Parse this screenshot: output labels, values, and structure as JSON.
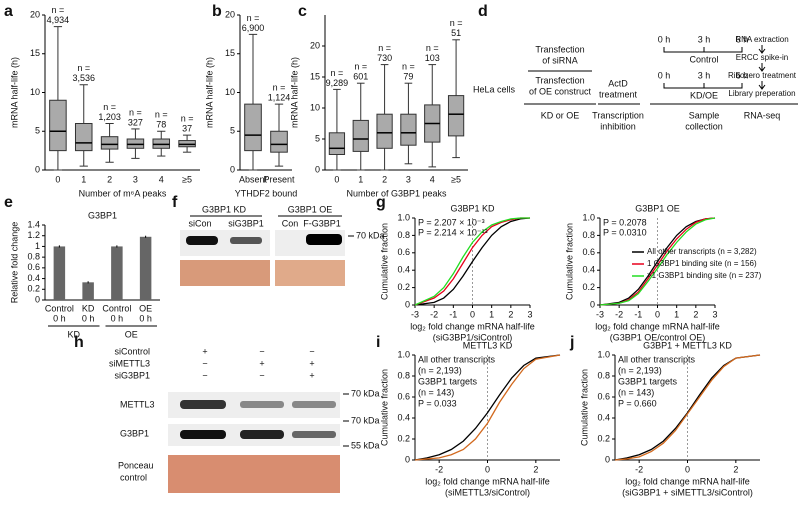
{
  "chart_data": [
    {
      "type": "box",
      "ylabel": "mRNA half-life (h)",
      "xlabel": "Number of m⁶A peaks",
      "color": "#aaaaaa",
      "ylim": [
        0,
        20
      ],
      "yticks": [
        0,
        5,
        10,
        15,
        20
      ],
      "categories": [
        "0",
        "1",
        "2",
        "3",
        "4",
        "≥5"
      ],
      "boxes": [
        [
          0,
          2.5,
          5,
          9,
          18.5
        ],
        [
          0.5,
          2.5,
          3.5,
          6,
          11
        ],
        [
          1,
          2.7,
          3.3,
          4.3,
          6
        ],
        [
          1.5,
          2.8,
          3.3,
          4,
          5.3
        ],
        [
          1.8,
          2.8,
          3.3,
          4,
          5
        ],
        [
          2.3,
          3,
          3.3,
          3.8,
          4.5
        ]
      ],
      "annotations": [
        [
          "n =",
          "4,934"
        ],
        [
          "n =",
          "3,536"
        ],
        [
          "n =",
          "1,203"
        ],
        [
          "n =",
          "327"
        ],
        [
          "n =",
          "78"
        ],
        [
          "n =",
          "37"
        ]
      ]
    },
    {
      "type": "box",
      "ylabel": "mRNA half-life (h)",
      "xlabel": "YTHDF2 bound",
      "color": "#aaaaaa",
      "ylim": [
        0,
        20
      ],
      "yticks": [
        0,
        5,
        10,
        15,
        20
      ],
      "categories": [
        "Absent",
        "Present"
      ],
      "boxes": [
        [
          0,
          2.5,
          4.5,
          8.5,
          17.5
        ],
        [
          0.5,
          2.3,
          3.3,
          5,
          8.5
        ]
      ],
      "annotations": [
        [
          "n =",
          "6,900"
        ],
        [
          "n =",
          "1,124"
        ]
      ]
    },
    {
      "type": "box",
      "ylabel": "mRNA half-life (h)",
      "xlabel": "Number of G3BP1 peaks",
      "color": "#aaaaaa",
      "ylim": [
        0,
        25
      ],
      "yticks": [
        0,
        5,
        10,
        15,
        20
      ],
      "categories": [
        "0",
        "1",
        "2",
        "3",
        "4",
        "≥5"
      ],
      "boxes": [
        [
          0,
          2.5,
          3.5,
          6,
          13
        ],
        [
          0,
          3,
          5,
          8,
          14
        ],
        [
          0,
          3.5,
          6,
          9,
          17
        ],
        [
          1,
          4,
          6,
          9,
          14
        ],
        [
          0.5,
          4.5,
          7.5,
          10.5,
          17
        ],
        [
          2,
          5.5,
          9,
          12,
          21
        ]
      ],
      "annotations": [
        [
          "n =",
          "9,289"
        ],
        [
          "n =",
          "601"
        ],
        [
          "n =",
          "730"
        ],
        [
          "n =",
          "79"
        ],
        [
          "n =",
          "103"
        ],
        [
          "n =",
          "51"
        ]
      ]
    },
    {
      "type": "bar",
      "title": "G3BP1",
      "ylabel": "Relative fold change",
      "color": "#666666",
      "ylim": [
        0,
        1.4
      ],
      "yticks": [
        0,
        0.2,
        0.4,
        0.6,
        0.8,
        1,
        1.2,
        1.4
      ],
      "categories": [
        "Control",
        "KD",
        "Control",
        "OE"
      ],
      "subcategories": [
        "0 h",
        "0 h",
        "0 h",
        "0 h"
      ],
      "groups": [
        "KD",
        "OE"
      ],
      "values": [
        1.0,
        0.33,
        1.0,
        1.18
      ],
      "errors": [
        0.02,
        0.02,
        0.02,
        0.02
      ]
    },
    {
      "type": "cdf",
      "title": "G3BP1 KD",
      "ylabel": "Cumulative fraction",
      "xlabel": [
        "log₂ fold change mRNA half-life",
        "(siG3BP1/siControl)"
      ],
      "xlim": [
        -3,
        3
      ],
      "xticks": [
        -3,
        -2,
        -1,
        0,
        1,
        2,
        3
      ],
      "ylim": [
        0,
        1
      ],
      "yticks": [
        0,
        0.2,
        0.4,
        0.6,
        0.8,
        {
          "value": 1,
          "label": "1.0"
        }
      ],
      "legend": "none",
      "x": [
        -3,
        -2,
        -1.5,
        -1,
        -0.5,
        0,
        0.5,
        1,
        1.5,
        2,
        2.5,
        3
      ],
      "series": [
        {
          "color": "#000000",
          "values": [
            0,
            0.03,
            0.08,
            0.18,
            0.33,
            0.5,
            0.66,
            0.8,
            0.9,
            0.96,
            0.99,
            1
          ]
        },
        {
          "color": "#e8001c",
          "values": [
            0,
            0.08,
            0.16,
            0.3,
            0.48,
            0.66,
            0.8,
            0.9,
            0.95,
            0.98,
            1,
            1
          ]
        },
        {
          "color": "#22dd22",
          "values": [
            0,
            0.1,
            0.2,
            0.36,
            0.55,
            0.72,
            0.84,
            0.92,
            0.96,
            0.99,
            1,
            1
          ]
        }
      ],
      "annotations": [
        {
          "text": "P = 2.207 × 10⁻³",
          "color": "#e8001c"
        },
        {
          "text": "P = 2.214 × 10⁻¹³",
          "color": "#22dd22"
        }
      ]
    },
    {
      "type": "cdf",
      "title": "G3BP1 OE",
      "ylabel": "Cumulative fraction",
      "xlabel": [
        "log₂ fold change mRNA half-life",
        "(G3BP1 OE/control OE)"
      ],
      "xlim": [
        -3,
        3
      ],
      "xticks": [
        -3,
        -2,
        -1,
        0,
        1,
        2,
        3
      ],
      "ylim": [
        0,
        1
      ],
      "yticks": [
        0,
        0.2,
        0.4,
        0.6,
        0.8,
        {
          "value": 1,
          "label": "1.0"
        }
      ],
      "legend": "lines",
      "x": [
        -3,
        -2,
        -1.5,
        -1,
        -0.5,
        0,
        0.5,
        1,
        1.5,
        2,
        2.5,
        3
      ],
      "series": [
        {
          "name": "All other transcripts (n = 3,282)",
          "color": "#000000",
          "values": [
            0,
            0.03,
            0.08,
            0.18,
            0.33,
            0.5,
            0.66,
            0.8,
            0.9,
            0.96,
            0.99,
            1
          ]
        },
        {
          "name": "1 G3BP1 binding site (n = 156)",
          "color": "#e8001c",
          "values": [
            0,
            0.02,
            0.06,
            0.15,
            0.3,
            0.46,
            0.62,
            0.76,
            0.87,
            0.95,
            0.99,
            1
          ]
        },
        {
          "name": ">1 G3BP1 binding site (n = 237)",
          "color": "#22dd22",
          "values": [
            0,
            0.02,
            0.05,
            0.13,
            0.27,
            0.42,
            0.58,
            0.72,
            0.84,
            0.93,
            0.98,
            1
          ]
        }
      ],
      "annotations": [
        {
          "text": "P = 0.2078",
          "color": "#e8001c"
        },
        {
          "text": "P = 0.0310",
          "color": "#22dd22"
        }
      ]
    },
    {
      "type": "cdf",
      "title": "METTL3 KD",
      "ylabel": "Cumulative fraction",
      "xlabel": [
        "log₂ fold change mRNA half-life",
        "(siMETTL3/siControl)"
      ],
      "xlim": [
        -3,
        3
      ],
      "xticks": [
        -2,
        0,
        2
      ],
      "ylim": [
        0,
        1
      ],
      "yticks": [
        0,
        0.2,
        0.4,
        0.6,
        0.8,
        {
          "value": 1,
          "label": "1.0"
        }
      ],
      "legend": "text",
      "x": [
        -3,
        -2.5,
        -2,
        -1.5,
        -1,
        -0.5,
        0,
        0.5,
        1,
        1.5,
        2,
        3
      ],
      "series": [
        {
          "name": "All other transcripts",
          "color": "#000000",
          "values": [
            0,
            0.02,
            0.05,
            0.1,
            0.18,
            0.3,
            0.45,
            0.62,
            0.78,
            0.9,
            0.97,
            1
          ]
        },
        {
          "name": "G3BP1 targets",
          "color": "#d2691e",
          "values": [
            0,
            0.01,
            0.02,
            0.05,
            0.1,
            0.2,
            0.35,
            0.55,
            0.72,
            0.87,
            0.96,
            1
          ]
        }
      ],
      "annotations": [
        {
          "text": "(n = 2,193)",
          "color": "#000000"
        },
        {
          "text": "(n = 143)",
          "color": "#d2691e"
        },
        {
          "text": "P = 0.033",
          "color": "#d2691e"
        }
      ]
    },
    {
      "type": "cdf",
      "title": "G3BP1 + METTL3 KD",
      "ylabel": "Cumulative fraction",
      "xlabel": [
        "log₂ fold change mRNA  half-life",
        "(siG3BP1 + siMETTL3/siControl)"
      ],
      "xlim": [
        -3,
        3
      ],
      "xticks": [
        -2,
        0,
        2
      ],
      "ylim": [
        0,
        1
      ],
      "yticks": [
        0,
        0.2,
        0.4,
        0.6,
        0.8,
        {
          "value": 1,
          "label": "1.0"
        }
      ],
      "legend": "text",
      "x": [
        -3,
        -2.5,
        -2,
        -1.5,
        -1,
        -0.5,
        0,
        0.5,
        1,
        1.5,
        2,
        3
      ],
      "series": [
        {
          "name": "All other transcripts",
          "color": "#000000",
          "values": [
            0,
            0.02,
            0.05,
            0.1,
            0.18,
            0.3,
            0.45,
            0.62,
            0.78,
            0.9,
            0.97,
            1
          ]
        },
        {
          "name": "G3BP1 targets",
          "color": "#d2691e",
          "values": [
            0,
            0.01,
            0.03,
            0.08,
            0.16,
            0.28,
            0.44,
            0.6,
            0.76,
            0.89,
            0.97,
            1
          ]
        }
      ],
      "annotations": [
        {
          "text": "(n = 2,193)",
          "color": "#000000"
        },
        {
          "text": "(n = 143)",
          "color": "#d2691e"
        },
        {
          "text": "P = 0.660",
          "color": "#d2691e"
        }
      ]
    }
  ],
  "panels": {
    "letters": [
      "a",
      "b",
      "c",
      "d",
      "e",
      "f",
      "g",
      "h",
      "i",
      "j"
    ],
    "d": {
      "cells": "HeLa cells",
      "sirna": [
        "Transfection",
        "of siRNA"
      ],
      "oe": [
        "Transfection",
        "of OE construct"
      ],
      "kdoe": "KD or OE",
      "actd": [
        "ActD",
        "treatment"
      ],
      "inhib": [
        "Transcription",
        "inhibition"
      ],
      "times1": [
        "0 h",
        "3 h",
        "6 h"
      ],
      "control": "Control",
      "times2": [
        "0 h",
        "3 h",
        "6 h"
      ],
      "kd": "KD/OE",
      "sample": [
        "Sample",
        "collection"
      ],
      "steps": [
        "RNA extraction",
        "ERCC spike-in",
        "Ribozero treatment",
        "Library preperation"
      ],
      "seq": "RNA-seq"
    },
    "f": {
      "kd": "G3BP1 KD",
      "lanes_kd": [
        "siCon",
        "siG3BP1"
      ],
      "oe": "G3BP1 OE",
      "lanes_oe": [
        "Con",
        "F-G3BP1"
      ],
      "marker": "70 kDa"
    },
    "h": {
      "rows": [
        "siControl",
        "siMETTL3",
        "siG3BP1"
      ],
      "matrix": [
        [
          "+",
          "−",
          "−"
        ],
        [
          "−",
          "+",
          "+"
        ],
        [
          "−",
          "−",
          "+"
        ]
      ],
      "blots": [
        "METTL3",
        "G3BP1"
      ],
      "markers": [
        "70 kDa",
        "70 kDa",
        "55 kDa"
      ],
      "ponceau": [
        "Ponceau",
        "control"
      ]
    }
  }
}
